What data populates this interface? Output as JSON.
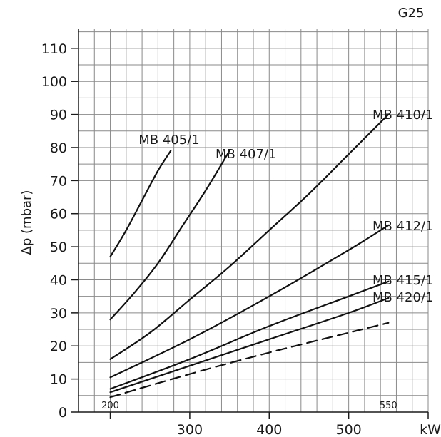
{
  "chart_data": {
    "type": "line",
    "title": "G25",
    "ylabel": "Δp (mbar)",
    "xlabel": "kW",
    "xlim": [
      160,
      600
    ],
    "ylim": [
      0,
      116
    ],
    "grid": true,
    "x_ticks": [
      300,
      400,
      500
    ],
    "x_edge_labels": [
      "200",
      "550"
    ],
    "y_ticks": [
      0,
      10,
      20,
      30,
      40,
      50,
      60,
      70,
      80,
      90,
      100,
      110
    ],
    "series": [
      {
        "name": "MB 405/1",
        "style": "solid",
        "x": [
          200,
          220,
          240,
          260,
          276
        ],
        "y": [
          47,
          55,
          64,
          73,
          79
        ]
      },
      {
        "name": "MB 407/1",
        "style": "solid",
        "x": [
          200,
          230,
          260,
          290,
          320,
          350
        ],
        "y": [
          28,
          36,
          45,
          56,
          67,
          79
        ]
      },
      {
        "name": "MB 410/1",
        "style": "solid",
        "x": [
          200,
          250,
          300,
          350,
          400,
          450,
          500,
          550
        ],
        "y": [
          16,
          24,
          34,
          44,
          55,
          66,
          78,
          90
        ]
      },
      {
        "name": "MB 412/1",
        "style": "solid",
        "x": [
          200,
          300,
          400,
          500,
          550
        ],
        "y": [
          10.5,
          22,
          35,
          49,
          56.5
        ]
      },
      {
        "name": "MB 415/1",
        "style": "solid",
        "x": [
          200,
          300,
          400,
          500,
          550
        ],
        "y": [
          7,
          16,
          26,
          35,
          39.5
        ]
      },
      {
        "name": "MB 420/1",
        "style": "solid",
        "x": [
          200,
          300,
          400,
          500,
          550
        ],
        "y": [
          6,
          14,
          22,
          30,
          34.5
        ]
      },
      {
        "name": "",
        "style": "dashed",
        "x": [
          200,
          300,
          400,
          500,
          550
        ],
        "y": [
          4.5,
          11.5,
          18,
          24,
          27
        ]
      }
    ]
  }
}
